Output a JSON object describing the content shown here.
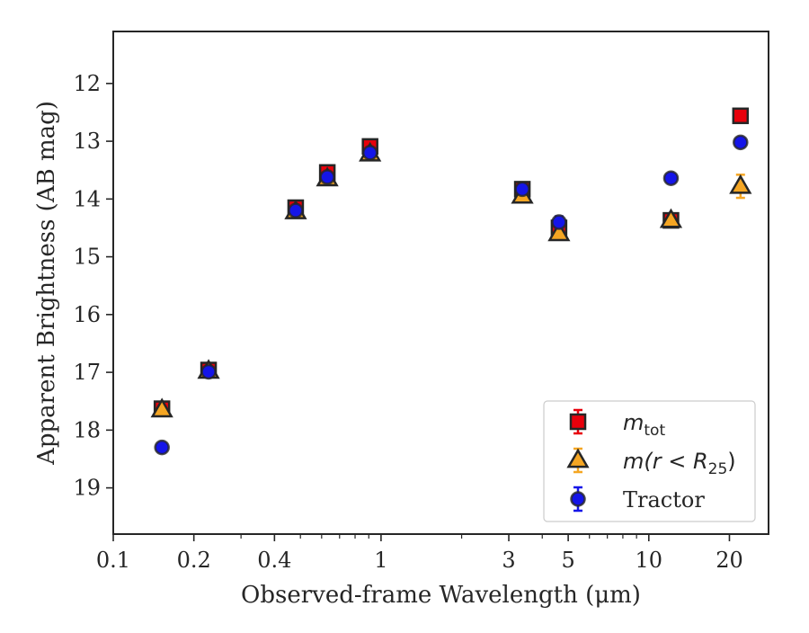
{
  "chart_data": {
    "type": "scatter",
    "xlabel": "Observed-frame Wavelength (μm)",
    "ylabel": "Apparent Brightness (AB mag)",
    "x_scale": "log",
    "xlim": [
      0.1,
      28
    ],
    "ylim": [
      19.8,
      11.1
    ],
    "y_inverted": true,
    "x_ticks": [
      0.1,
      0.2,
      0.4,
      1,
      3,
      5,
      10,
      20
    ],
    "x_tick_labels": [
      "0.1",
      "0.2",
      "0.4",
      "1",
      "3",
      "5",
      "10",
      "20"
    ],
    "y_ticks": [
      12,
      13,
      14,
      15,
      16,
      17,
      18,
      19
    ],
    "y_tick_labels": [
      "12",
      "13",
      "14",
      "15",
      "16",
      "17",
      "18",
      "19"
    ],
    "grid": false,
    "legend_position": "lower-right",
    "series": [
      {
        "label_main": "m",
        "label_sub": "tot",
        "marker": "square",
        "color": "#e8000b",
        "points": [
          {
            "x": 0.152,
            "y": 17.63
          },
          {
            "x": 0.227,
            "y": 16.96
          },
          {
            "x": 0.48,
            "y": 14.15
          },
          {
            "x": 0.63,
            "y": 13.54
          },
          {
            "x": 0.91,
            "y": 13.09
          },
          {
            "x": 3.37,
            "y": 13.83
          },
          {
            "x": 4.62,
            "y": 14.5
          },
          {
            "x": 12.1,
            "y": 14.37
          },
          {
            "x": 22.0,
            "y": 12.56
          }
        ]
      },
      {
        "label_main": "m(r < R",
        "label_sub": "25",
        "label_tail": ")",
        "marker": "triangle",
        "color": "#f5a623",
        "points": [
          {
            "x": 0.152,
            "y": 17.65
          },
          {
            "x": 0.227,
            "y": 16.98
          },
          {
            "x": 0.48,
            "y": 14.22
          },
          {
            "x": 0.63,
            "y": 13.65
          },
          {
            "x": 0.91,
            "y": 13.22
          },
          {
            "x": 3.37,
            "y": 13.95
          },
          {
            "x": 4.62,
            "y": 14.6
          },
          {
            "x": 12.1,
            "y": 14.37
          },
          {
            "x": 22.0,
            "y": 13.78,
            "err": 0.2
          }
        ]
      },
      {
        "label_main": "Tractor",
        "marker": "circle",
        "color": "#1515e8",
        "points": [
          {
            "x": 0.152,
            "y": 18.3
          },
          {
            "x": 0.227,
            "y": 16.99
          },
          {
            "x": 0.48,
            "y": 14.2
          },
          {
            "x": 0.63,
            "y": 13.62
          },
          {
            "x": 0.91,
            "y": 13.2
          },
          {
            "x": 3.37,
            "y": 13.83
          },
          {
            "x": 4.62,
            "y": 14.4,
            "err": 0.1
          },
          {
            "x": 12.1,
            "y": 13.64
          },
          {
            "x": 22.0,
            "y": 13.02
          }
        ]
      }
    ]
  }
}
